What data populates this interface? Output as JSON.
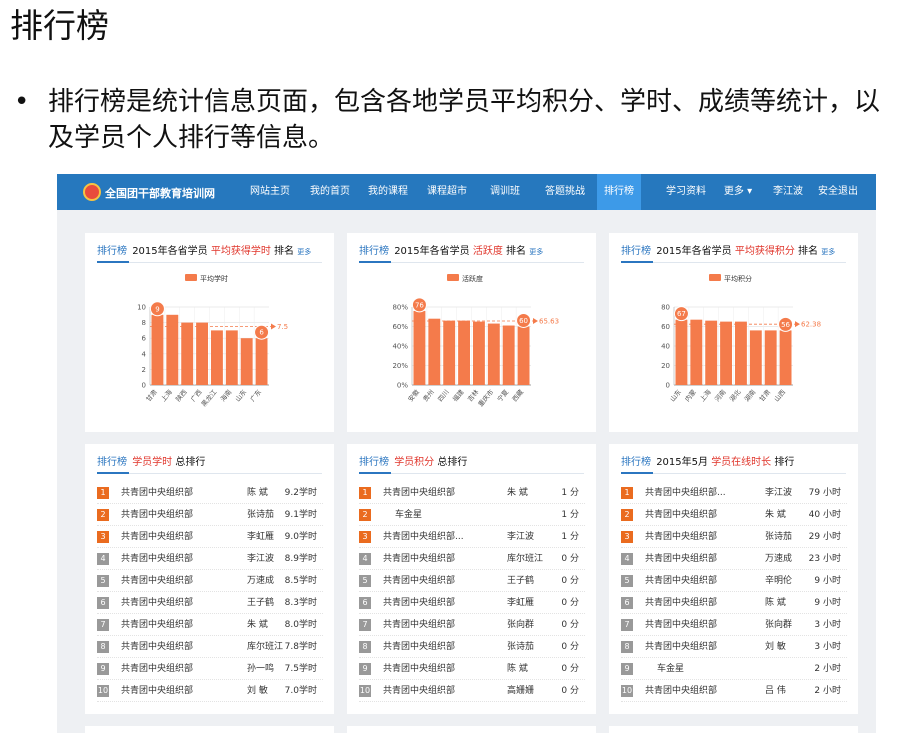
{
  "slide": {
    "title": "排行榜",
    "bullet": "•",
    "text": "排行榜是统计信息页面，包含各地学员平均积分、学时、成绩等统计，以及学员个人排行等信息。"
  },
  "nav": {
    "brand": "全国团干部教育培训网",
    "items": [
      "网站主页",
      "我的首页",
      "我的课程",
      "课程超市",
      "调训班",
      "答题挑战",
      "排行榜",
      "学习资料",
      "更多",
      "李江波",
      "安全退出"
    ],
    "active": 6
  },
  "colors": {
    "nav": "#2678be",
    "bar": "#f47b4b",
    "accent": "#e0352b"
  },
  "charts": [
    {
      "tab": "排行榜",
      "prefix": "2015年各省学员",
      "highlight": "平均获得学时",
      "suffix": "排名",
      "more": "更多",
      "legend": "平均学时",
      "yticks": [
        "0",
        "2",
        "4",
        "6",
        "8",
        "10"
      ],
      "avg_label": "7.5",
      "max_label": "9",
      "min_label": "6"
    },
    {
      "tab": "排行榜",
      "prefix": "2015年各省学员",
      "highlight": "活跃度",
      "suffix": "排名",
      "more": "更多",
      "legend": "活跃度",
      "yticks": [
        "0%",
        "20%",
        "40%",
        "60%",
        "80%"
      ],
      "avg_label": "65.63",
      "max_label": "76",
      "min_label": "60"
    },
    {
      "tab": "排行榜",
      "prefix": "2015年各省学员",
      "highlight": "平均获得积分",
      "suffix": "排名",
      "more": "更多",
      "legend": "平均积分",
      "yticks": [
        "0",
        "20",
        "40",
        "60",
        "80"
      ],
      "avg_label": "62.38",
      "max_label": "67",
      "min_label": "56"
    }
  ],
  "chart_data": [
    {
      "type": "bar",
      "categories": [
        "甘肃",
        "上海",
        "陕西",
        "广西",
        "黑龙江",
        "海南",
        "山东",
        "广东"
      ],
      "values": [
        9,
        9,
        8,
        8,
        7,
        7,
        6,
        6
      ],
      "ylim": [
        0,
        10
      ],
      "average": 7.5,
      "legend": "平均学时"
    },
    {
      "type": "bar",
      "categories": [
        "安徽",
        "贵州",
        "四川",
        "福建",
        "吉林",
        "重庆市",
        "宁夏",
        "西藏"
      ],
      "values": [
        76,
        68,
        66,
        66,
        65,
        63,
        61,
        60
      ],
      "ylim": [
        0,
        80
      ],
      "unit": "%",
      "average": 65.63,
      "legend": "活跃度"
    },
    {
      "type": "bar",
      "categories": [
        "山东",
        "内蒙",
        "上海",
        "河南",
        "湖北",
        "湖南",
        "甘肃",
        "山西"
      ],
      "values": [
        67,
        67,
        66,
        65,
        65,
        56,
        56,
        56
      ],
      "ylim": [
        0,
        80
      ],
      "average": 62.38,
      "legend": "平均积分"
    }
  ],
  "lists": [
    {
      "tab": "排行榜",
      "prefix": "",
      "highlight": "学员学时",
      "suffix": "总排行",
      "rows": [
        [
          "1",
          "共青团中央组织部",
          "陈 斌",
          "9.2学时"
        ],
        [
          "2",
          "共青团中央组织部",
          "张诗茄",
          "9.1学时"
        ],
        [
          "3",
          "共青团中央组织部",
          "李虹雁",
          "9.0学时"
        ],
        [
          "4",
          "共青团中央组织部",
          "李江波",
          "8.9学时"
        ],
        [
          "5",
          "共青团中央组织部",
          "万速成",
          "8.5学时"
        ],
        [
          "6",
          "共青团中央组织部",
          "王子鹤",
          "8.3学时"
        ],
        [
          "7",
          "共青团中央组织部",
          "朱 斌",
          "8.0学时"
        ],
        [
          "8",
          "共青团中央组织部",
          "库尔班江",
          "7.8学时"
        ],
        [
          "9",
          "共青团中央组织部",
          "孙一鸣",
          "7.5学时"
        ],
        [
          "10",
          "共青团中央组织部",
          "刘 敏",
          "7.0学时"
        ]
      ]
    },
    {
      "tab": "排行榜",
      "prefix": "",
      "highlight": "学员积分",
      "suffix": "总排行",
      "rows": [
        [
          "1",
          "共青团中央组织部",
          "朱 斌",
          "1 分"
        ],
        [
          "2",
          "车金星",
          "",
          "1 分"
        ],
        [
          "3",
          "共青团中央组织部...",
          "李江波",
          "1 分"
        ],
        [
          "4",
          "共青团中央组织部",
          "库尔班江",
          "0 分"
        ],
        [
          "5",
          "共青团中央组织部",
          "王子鹤",
          "0 分"
        ],
        [
          "6",
          "共青团中央组织部",
          "李虹雁",
          "0 分"
        ],
        [
          "7",
          "共青团中央组织部",
          "张向群",
          "0 分"
        ],
        [
          "8",
          "共青团中央组织部",
          "张诗茄",
          "0 分"
        ],
        [
          "9",
          "共青团中央组织部",
          "陈 斌",
          "0 分"
        ],
        [
          "10",
          "共青团中央组织部",
          "高姗姗",
          "0 分"
        ]
      ]
    },
    {
      "tab": "排行榜",
      "prefix": "2015年5月",
      "highlight": "学员在线时长",
      "suffix": "排行",
      "rows": [
        [
          "1",
          "共青团中央组织部...",
          "李江波",
          "79 小时"
        ],
        [
          "2",
          "共青团中央组织部",
          "朱 斌",
          "40 小时"
        ],
        [
          "3",
          "共青团中央组织部",
          "张诗茄",
          "29 小时"
        ],
        [
          "4",
          "共青团中央组织部",
          "万速成",
          "23 小时"
        ],
        [
          "5",
          "共青团中央组织部",
          "辛明伦",
          "9 小时"
        ],
        [
          "6",
          "共青团中央组织部",
          "陈 斌",
          "9 小时"
        ],
        [
          "7",
          "共青团中央组织部",
          "张向群",
          "3 小时"
        ],
        [
          "8",
          "共青团中央组织部",
          "刘 敏",
          "3 小时"
        ],
        [
          "9",
          "车金星",
          "",
          "2 小时"
        ],
        [
          "10",
          "共青团中央组织部",
          "吕 伟",
          "2 小时"
        ]
      ]
    }
  ]
}
